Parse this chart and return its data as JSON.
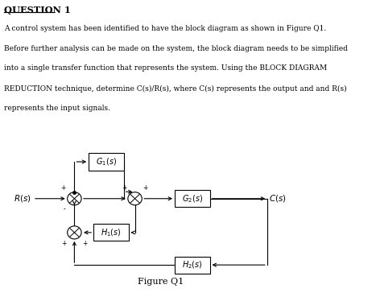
{
  "title": "QUESTION 1",
  "para1": "A control system has been identified to have the block diagram as shown in Figure Q1.",
  "para2": "Before further analysis can be made on the system, the block diagram needs to be simplified",
  "para3": "into a single transfer function that represents the system. Using the BLOCK DIAGRAM",
  "para4": "REDUCTION technique, determine C(s)/R(s), where C(s) represents the output and and R(s)",
  "para5": "represents the input signals.",
  "figure_label": "Figure Q1",
  "bg_color": "#ffffff",
  "text_color": "#000000"
}
